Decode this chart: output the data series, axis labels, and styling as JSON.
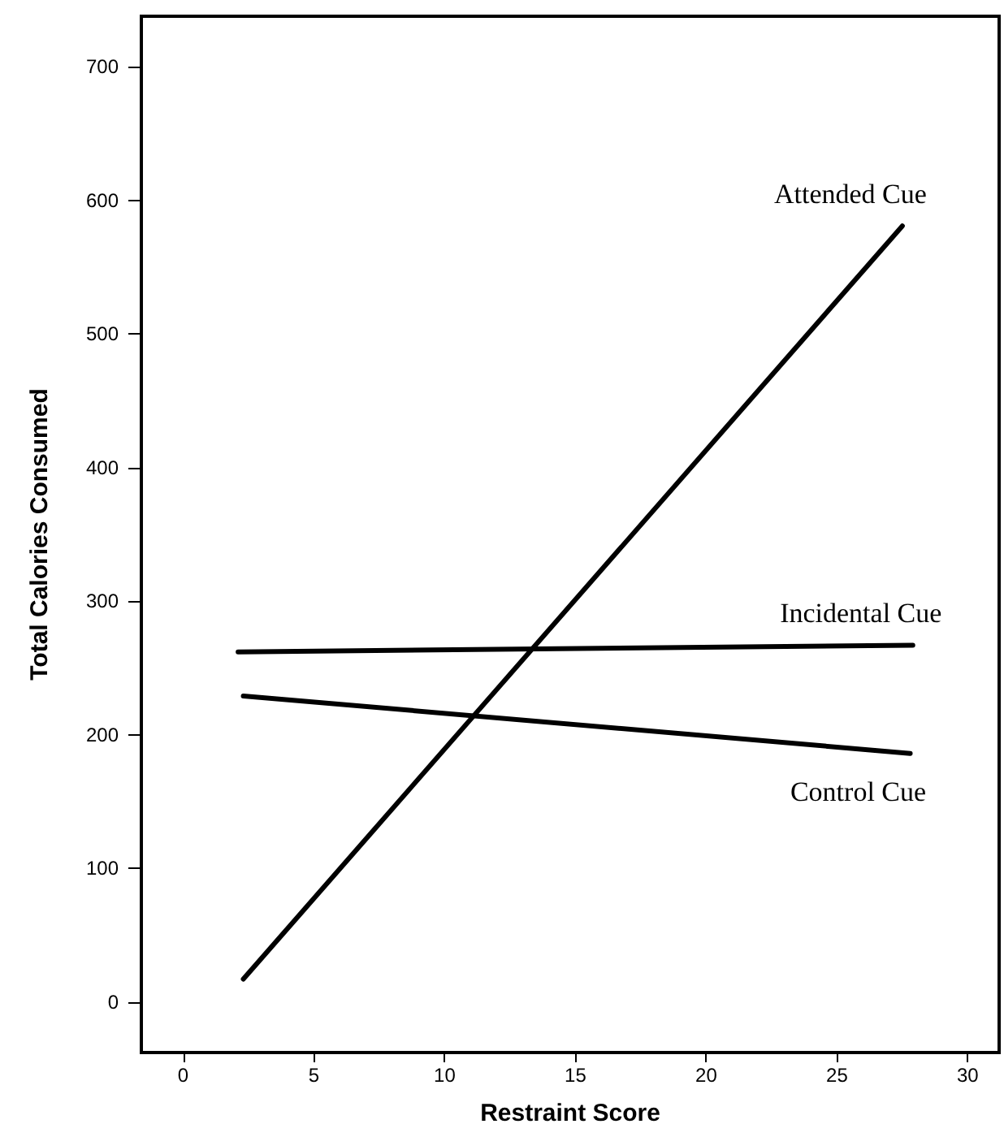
{
  "chart_data": {
    "type": "line",
    "xlabel": "Restraint Score",
    "ylabel": "Total Calories Consumed",
    "xlim": [
      -1.6,
      31.2
    ],
    "xticks": [
      0,
      5,
      10,
      15,
      20,
      25,
      30
    ],
    "ylim": [
      -38,
      738
    ],
    "yticks": [
      0,
      100,
      200,
      300,
      400,
      500,
      600,
      700
    ],
    "grid": false,
    "legend": false,
    "marker": "none",
    "line_style": "solid",
    "series": [
      {
        "name": "Attended Cue",
        "color": "#000000",
        "x": [
          2.3,
          27.5
        ],
        "values": [
          17,
          581
        ]
      },
      {
        "name": "Incidental Cue",
        "color": "#000000",
        "x": [
          2.1,
          27.9
        ],
        "values": [
          262,
          267
        ]
      },
      {
        "name": "Control Cue",
        "color": "#000000",
        "x": [
          2.3,
          27.8
        ],
        "values": [
          229,
          186
        ]
      }
    ]
  }
}
